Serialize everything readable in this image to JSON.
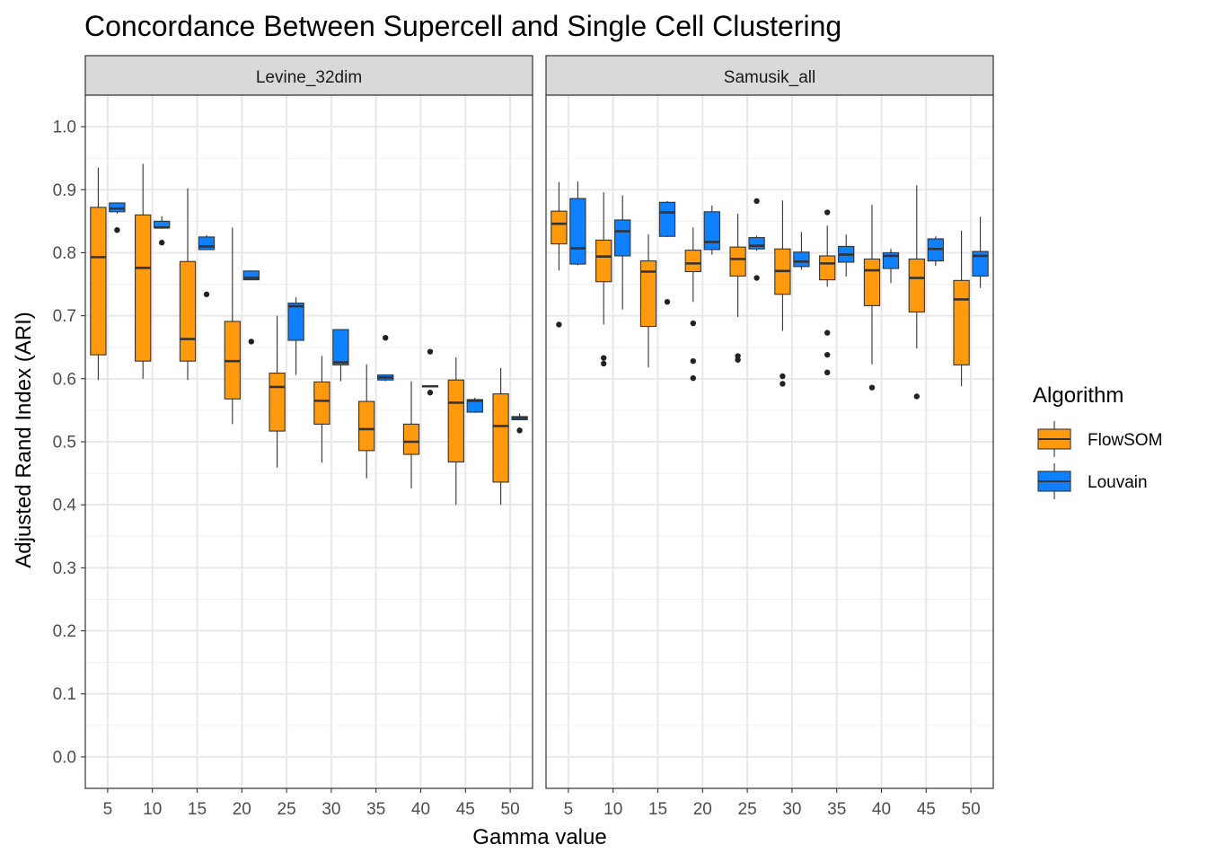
{
  "chart_data": {
    "type": "boxplot",
    "title": "Concordance Between Supercell and Single Cell Clustering",
    "xlabel": "Gamma value",
    "ylabel": "Adjusted Rand Index (ARI)",
    "ylim": [
      -0.05,
      1.05
    ],
    "yticks": [
      "0.0",
      "0.1",
      "0.2",
      "0.3",
      "0.4",
      "0.5",
      "0.6",
      "0.7",
      "0.8",
      "0.9",
      "1.0"
    ],
    "categories": [
      "5",
      "10",
      "15",
      "20",
      "25",
      "30",
      "35",
      "40",
      "45",
      "50"
    ],
    "grid": true,
    "legend": {
      "title": "Algorithm",
      "position": "right",
      "entries": [
        {
          "name": "FlowSOM",
          "color": "#FF9A0E"
        },
        {
          "name": "Louvain",
          "color": "#0F80FF"
        }
      ]
    },
    "panels": [
      {
        "strip": "Levine_32dim",
        "series": [
          {
            "name": "FlowSOM",
            "boxes": [
              {
                "x": "5",
                "min": 0.598,
                "q1": 0.638,
                "median": 0.793,
                "q3": 0.872,
                "max": 0.935,
                "outliers": []
              },
              {
                "x": "10",
                "min": 0.6,
                "q1": 0.628,
                "median": 0.776,
                "q3": 0.86,
                "max": 0.941,
                "outliers": []
              },
              {
                "x": "15",
                "min": 0.598,
                "q1": 0.628,
                "median": 0.663,
                "q3": 0.786,
                "max": 0.902,
                "outliers": []
              },
              {
                "x": "20",
                "min": 0.528,
                "q1": 0.568,
                "median": 0.628,
                "q3": 0.691,
                "max": 0.84,
                "outliers": []
              },
              {
                "x": "25",
                "min": 0.459,
                "q1": 0.517,
                "median": 0.587,
                "q3": 0.609,
                "max": 0.7,
                "outliers": []
              },
              {
                "x": "30",
                "min": 0.467,
                "q1": 0.528,
                "median": 0.565,
                "q3": 0.595,
                "max": 0.636,
                "outliers": []
              },
              {
                "x": "35",
                "min": 0.442,
                "q1": 0.486,
                "median": 0.52,
                "q3": 0.564,
                "max": 0.623,
                "outliers": []
              },
              {
                "x": "40",
                "min": 0.426,
                "q1": 0.48,
                "median": 0.5,
                "q3": 0.528,
                "max": 0.596,
                "outliers": []
              },
              {
                "x": "45",
                "min": 0.4,
                "q1": 0.468,
                "median": 0.562,
                "q3": 0.598,
                "max": 0.634,
                "outliers": []
              },
              {
                "x": "50",
                "min": 0.4,
                "q1": 0.436,
                "median": 0.525,
                "q3": 0.576,
                "max": 0.617,
                "outliers": []
              }
            ]
          },
          {
            "name": "Louvain",
            "boxes": [
              {
                "x": "5",
                "min": 0.862,
                "q1": 0.865,
                "median": 0.87,
                "q3": 0.879,
                "max": 0.88,
                "outliers": [
                  0.836
                ]
              },
              {
                "x": "10",
                "min": 0.838,
                "q1": 0.84,
                "median": 0.84,
                "q3": 0.85,
                "max": 0.858,
                "outliers": [
                  0.816
                ]
              },
              {
                "x": "15",
                "min": 0.804,
                "q1": 0.805,
                "median": 0.81,
                "q3": 0.825,
                "max": 0.828,
                "outliers": [
                  0.734
                ]
              },
              {
                "x": "20",
                "min": 0.757,
                "q1": 0.757,
                "median": 0.76,
                "q3": 0.771,
                "max": 0.772,
                "outliers": [
                  0.659
                ]
              },
              {
                "x": "25",
                "min": 0.606,
                "q1": 0.661,
                "median": 0.715,
                "q3": 0.72,
                "max": 0.729,
                "outliers": []
              },
              {
                "x": "30",
                "min": 0.596,
                "q1": 0.622,
                "median": 0.626,
                "q3": 0.678,
                "max": 0.678,
                "outliers": []
              },
              {
                "x": "35",
                "min": 0.596,
                "q1": 0.598,
                "median": 0.602,
                "q3": 0.606,
                "max": 0.606,
                "outliers": [
                  0.665
                ]
              },
              {
                "x": "40",
                "min": 0.587,
                "q1": 0.587,
                "median": 0.588,
                "q3": 0.589,
                "max": 0.589,
                "outliers": [
                  0.643,
                  0.578
                ]
              },
              {
                "x": "45",
                "min": 0.546,
                "q1": 0.547,
                "median": 0.565,
                "q3": 0.567,
                "max": 0.57,
                "outliers": []
              },
              {
                "x": "50",
                "min": 0.534,
                "q1": 0.535,
                "median": 0.538,
                "q3": 0.54,
                "max": 0.545,
                "outliers": [
                  0.518
                ]
              }
            ]
          }
        ]
      },
      {
        "strip": "Samusik_all",
        "series": [
          {
            "name": "FlowSOM",
            "boxes": [
              {
                "x": "5",
                "min": 0.772,
                "q1": 0.814,
                "median": 0.846,
                "q3": 0.866,
                "max": 0.912,
                "outliers": [
                  0.686
                ]
              },
              {
                "x": "10",
                "min": 0.686,
                "q1": 0.754,
                "median": 0.794,
                "q3": 0.82,
                "max": 0.896,
                "outliers": [
                  0.633,
                  0.624
                ]
              },
              {
                "x": "15",
                "min": 0.618,
                "q1": 0.683,
                "median": 0.77,
                "q3": 0.787,
                "max": 0.829,
                "outliers": []
              },
              {
                "x": "20",
                "min": 0.722,
                "q1": 0.77,
                "median": 0.783,
                "q3": 0.804,
                "max": 0.84,
                "outliers": [
                  0.688,
                  0.628,
                  0.601
                ]
              },
              {
                "x": "25",
                "min": 0.698,
                "q1": 0.763,
                "median": 0.79,
                "q3": 0.809,
                "max": 0.862,
                "outliers": [
                  0.636,
                  0.63
                ]
              },
              {
                "x": "30",
                "min": 0.676,
                "q1": 0.734,
                "median": 0.771,
                "q3": 0.806,
                "max": 0.883,
                "outliers": [
                  0.604,
                  0.592
                ]
              },
              {
                "x": "35",
                "min": 0.746,
                "q1": 0.757,
                "median": 0.783,
                "q3": 0.795,
                "max": 0.843,
                "outliers": [
                  0.864,
                  0.673,
                  0.638,
                  0.61
                ]
              },
              {
                "x": "40",
                "min": 0.623,
                "q1": 0.716,
                "median": 0.772,
                "q3": 0.79,
                "max": 0.876,
                "outliers": [
                  0.586
                ]
              },
              {
                "x": "45",
                "min": 0.648,
                "q1": 0.706,
                "median": 0.76,
                "q3": 0.79,
                "max": 0.907,
                "outliers": [
                  0.572
                ]
              },
              {
                "x": "50",
                "min": 0.588,
                "q1": 0.622,
                "median": 0.726,
                "q3": 0.756,
                "max": 0.835,
                "outliers": []
              }
            ]
          },
          {
            "name": "Louvain",
            "boxes": [
              {
                "x": "5",
                "min": 0.78,
                "q1": 0.782,
                "median": 0.807,
                "q3": 0.886,
                "max": 0.913,
                "outliers": []
              },
              {
                "x": "10",
                "min": 0.71,
                "q1": 0.795,
                "median": 0.834,
                "q3": 0.852,
                "max": 0.891,
                "outliers": []
              },
              {
                "x": "15",
                "min": 0.825,
                "q1": 0.826,
                "median": 0.864,
                "q3": 0.88,
                "max": 0.882,
                "outliers": [
                  0.722
                ]
              },
              {
                "x": "20",
                "min": 0.797,
                "q1": 0.805,
                "median": 0.817,
                "q3": 0.865,
                "max": 0.875,
                "outliers": []
              },
              {
                "x": "25",
                "min": 0.803,
                "q1": 0.806,
                "median": 0.811,
                "q3": 0.824,
                "max": 0.827,
                "outliers": [
                  0.882,
                  0.76
                ]
              },
              {
                "x": "30",
                "min": 0.773,
                "q1": 0.778,
                "median": 0.786,
                "q3": 0.801,
                "max": 0.833,
                "outliers": []
              },
              {
                "x": "35",
                "min": 0.762,
                "q1": 0.785,
                "median": 0.797,
                "q3": 0.81,
                "max": 0.829,
                "outliers": []
              },
              {
                "x": "40",
                "min": 0.752,
                "q1": 0.775,
                "median": 0.795,
                "q3": 0.8,
                "max": 0.806,
                "outliers": []
              },
              {
                "x": "45",
                "min": 0.779,
                "q1": 0.787,
                "median": 0.806,
                "q3": 0.822,
                "max": 0.826,
                "outliers": []
              },
              {
                "x": "50",
                "min": 0.744,
                "q1": 0.763,
                "median": 0.795,
                "q3": 0.802,
                "max": 0.857,
                "outliers": []
              }
            ]
          }
        ]
      }
    ]
  }
}
